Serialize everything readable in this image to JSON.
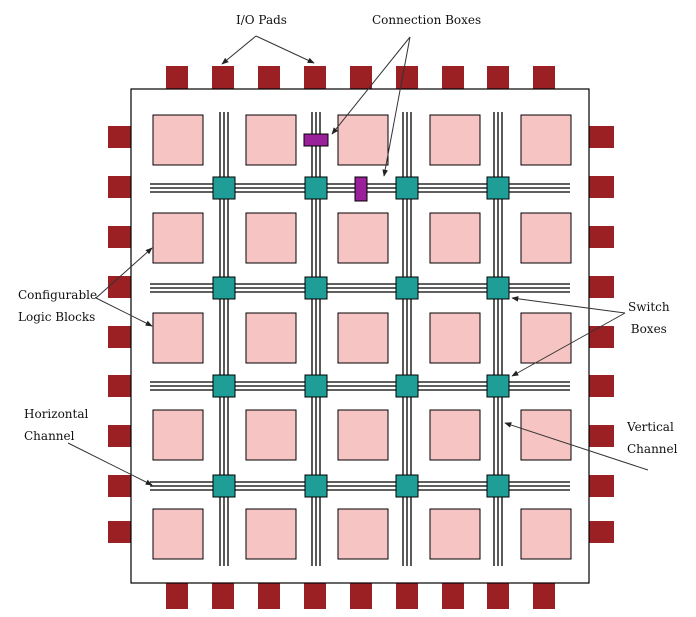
{
  "labels": {
    "io_pads": "I/O Pads",
    "connection_boxes": "Connection Boxes",
    "configurable_logic_blocks": [
      "Configurable",
      "Logic Blocks"
    ],
    "switch_boxes": [
      "Switch",
      "Boxes"
    ],
    "horizontal_channel": [
      "Horizontal",
      "Channel"
    ],
    "vertical_channel": [
      "Vertical",
      "Channel"
    ]
  },
  "grid": {
    "clb_rows": 5,
    "clb_cols": 5,
    "switch_box_rows": 4,
    "switch_box_cols": 4,
    "io_pads_top": 9,
    "io_pads_bottom": 9,
    "io_pads_left": 9,
    "io_pads_right": 9,
    "tracks_per_channel": 3
  },
  "colors": {
    "io_pad": "#9a2024",
    "clb": "#f7c4c4",
    "switch_box": "#1f9e98",
    "connection_box": "#9a1f9a",
    "wire": "#000000",
    "border": "#000000"
  }
}
